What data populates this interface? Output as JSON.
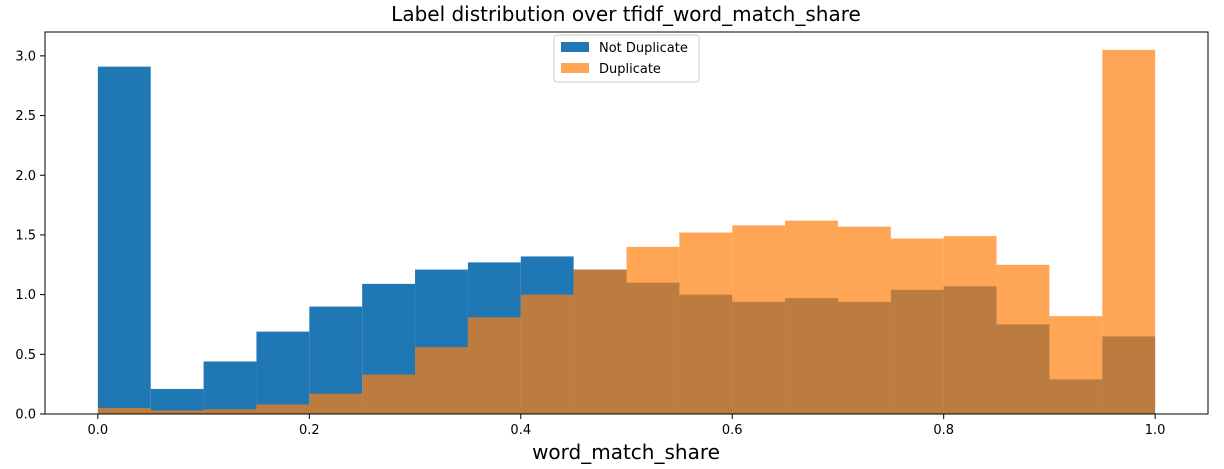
{
  "chart_data": {
    "type": "bar",
    "title": "Label distribution over tfidf_word_match_share",
    "xlabel": "word_match_share",
    "ylabel": "",
    "xlim": [
      -0.05,
      1.05
    ],
    "ylim": [
      0,
      3.2
    ],
    "xticks": [
      "0.0",
      "0.2",
      "0.4",
      "0.6",
      "0.8",
      "1.0"
    ],
    "yticks": [
      "0.0",
      "0.5",
      "1.0",
      "1.5",
      "2.0",
      "2.5",
      "3.0"
    ],
    "bin_edges": [
      0.0,
      0.05,
      0.1,
      0.15,
      0.2,
      0.25,
      0.3,
      0.35,
      0.4,
      0.45,
      0.5,
      0.55,
      0.6,
      0.65,
      0.7,
      0.75,
      0.8,
      0.85,
      0.9,
      0.95,
      1.0
    ],
    "grid": false,
    "legend_position": "top-center",
    "series": [
      {
        "name": "Not Duplicate",
        "color": "#1f77b4",
        "values": [
          2.91,
          0.21,
          0.44,
          0.69,
          0.9,
          1.09,
          1.21,
          1.27,
          1.32,
          1.21,
          1.1,
          1.0,
          0.94,
          0.97,
          0.94,
          1.04,
          1.07,
          0.75,
          0.29,
          0.65
        ]
      },
      {
        "name": "Duplicate",
        "color": "#ff7f0e",
        "opacity": 0.7,
        "values": [
          0.05,
          0.03,
          0.04,
          0.08,
          0.17,
          0.33,
          0.56,
          0.81,
          1.0,
          1.21,
          1.4,
          1.52,
          1.58,
          1.62,
          1.57,
          1.47,
          1.49,
          1.25,
          0.82,
          3.05
        ]
      }
    ]
  }
}
